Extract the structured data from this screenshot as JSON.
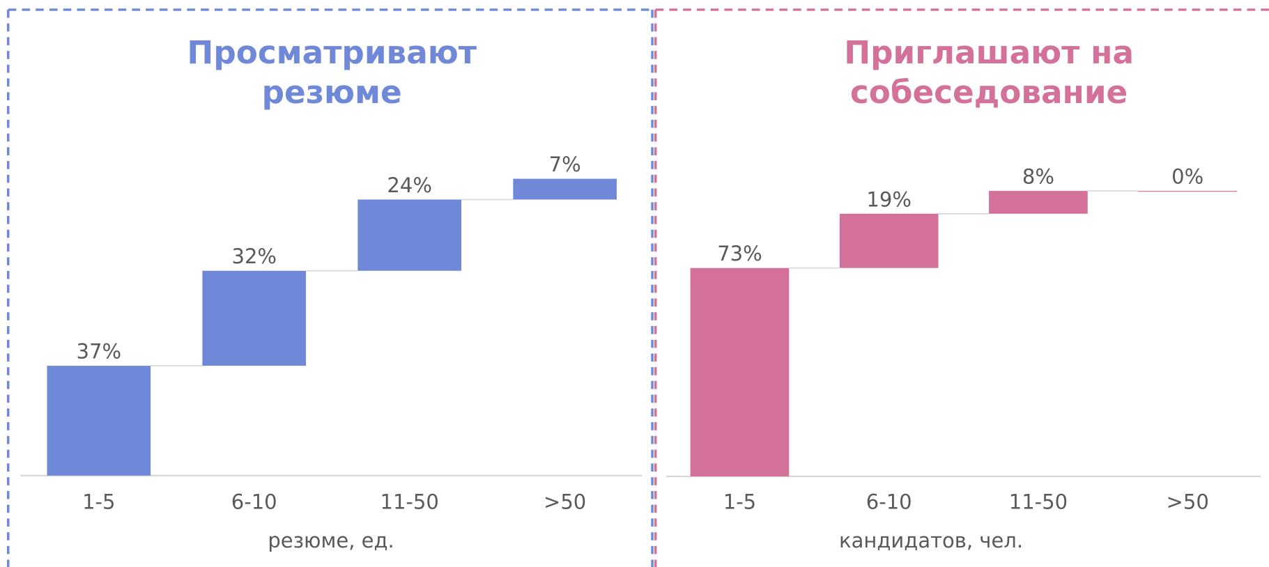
{
  "chart_data": [
    {
      "type": "waterfall",
      "title": [
        "Просматривают",
        "резюме"
      ],
      "categories": [
        "1-5",
        "6-10",
        "11-50",
        ">50"
      ],
      "values": [
        37,
        32,
        24,
        7
      ],
      "value_labels": [
        "37%",
        "32%",
        "24%",
        "7%"
      ],
      "color": "#6f88d8",
      "x_label": "резюме, ед.",
      "ylim": [
        0,
        100
      ]
    },
    {
      "type": "waterfall",
      "title": [
        "Приглашают на",
        "собеседование"
      ],
      "categories": [
        "1-5",
        "6-10",
        "11-50",
        ">50"
      ],
      "values": [
        73,
        19,
        8,
        0
      ],
      "value_labels": [
        "73%",
        "19%",
        "8%",
        "0%"
      ],
      "color": "#d4719b",
      "x_label": "кандидатов, чел.",
      "ylim": [
        0,
        100
      ]
    }
  ]
}
